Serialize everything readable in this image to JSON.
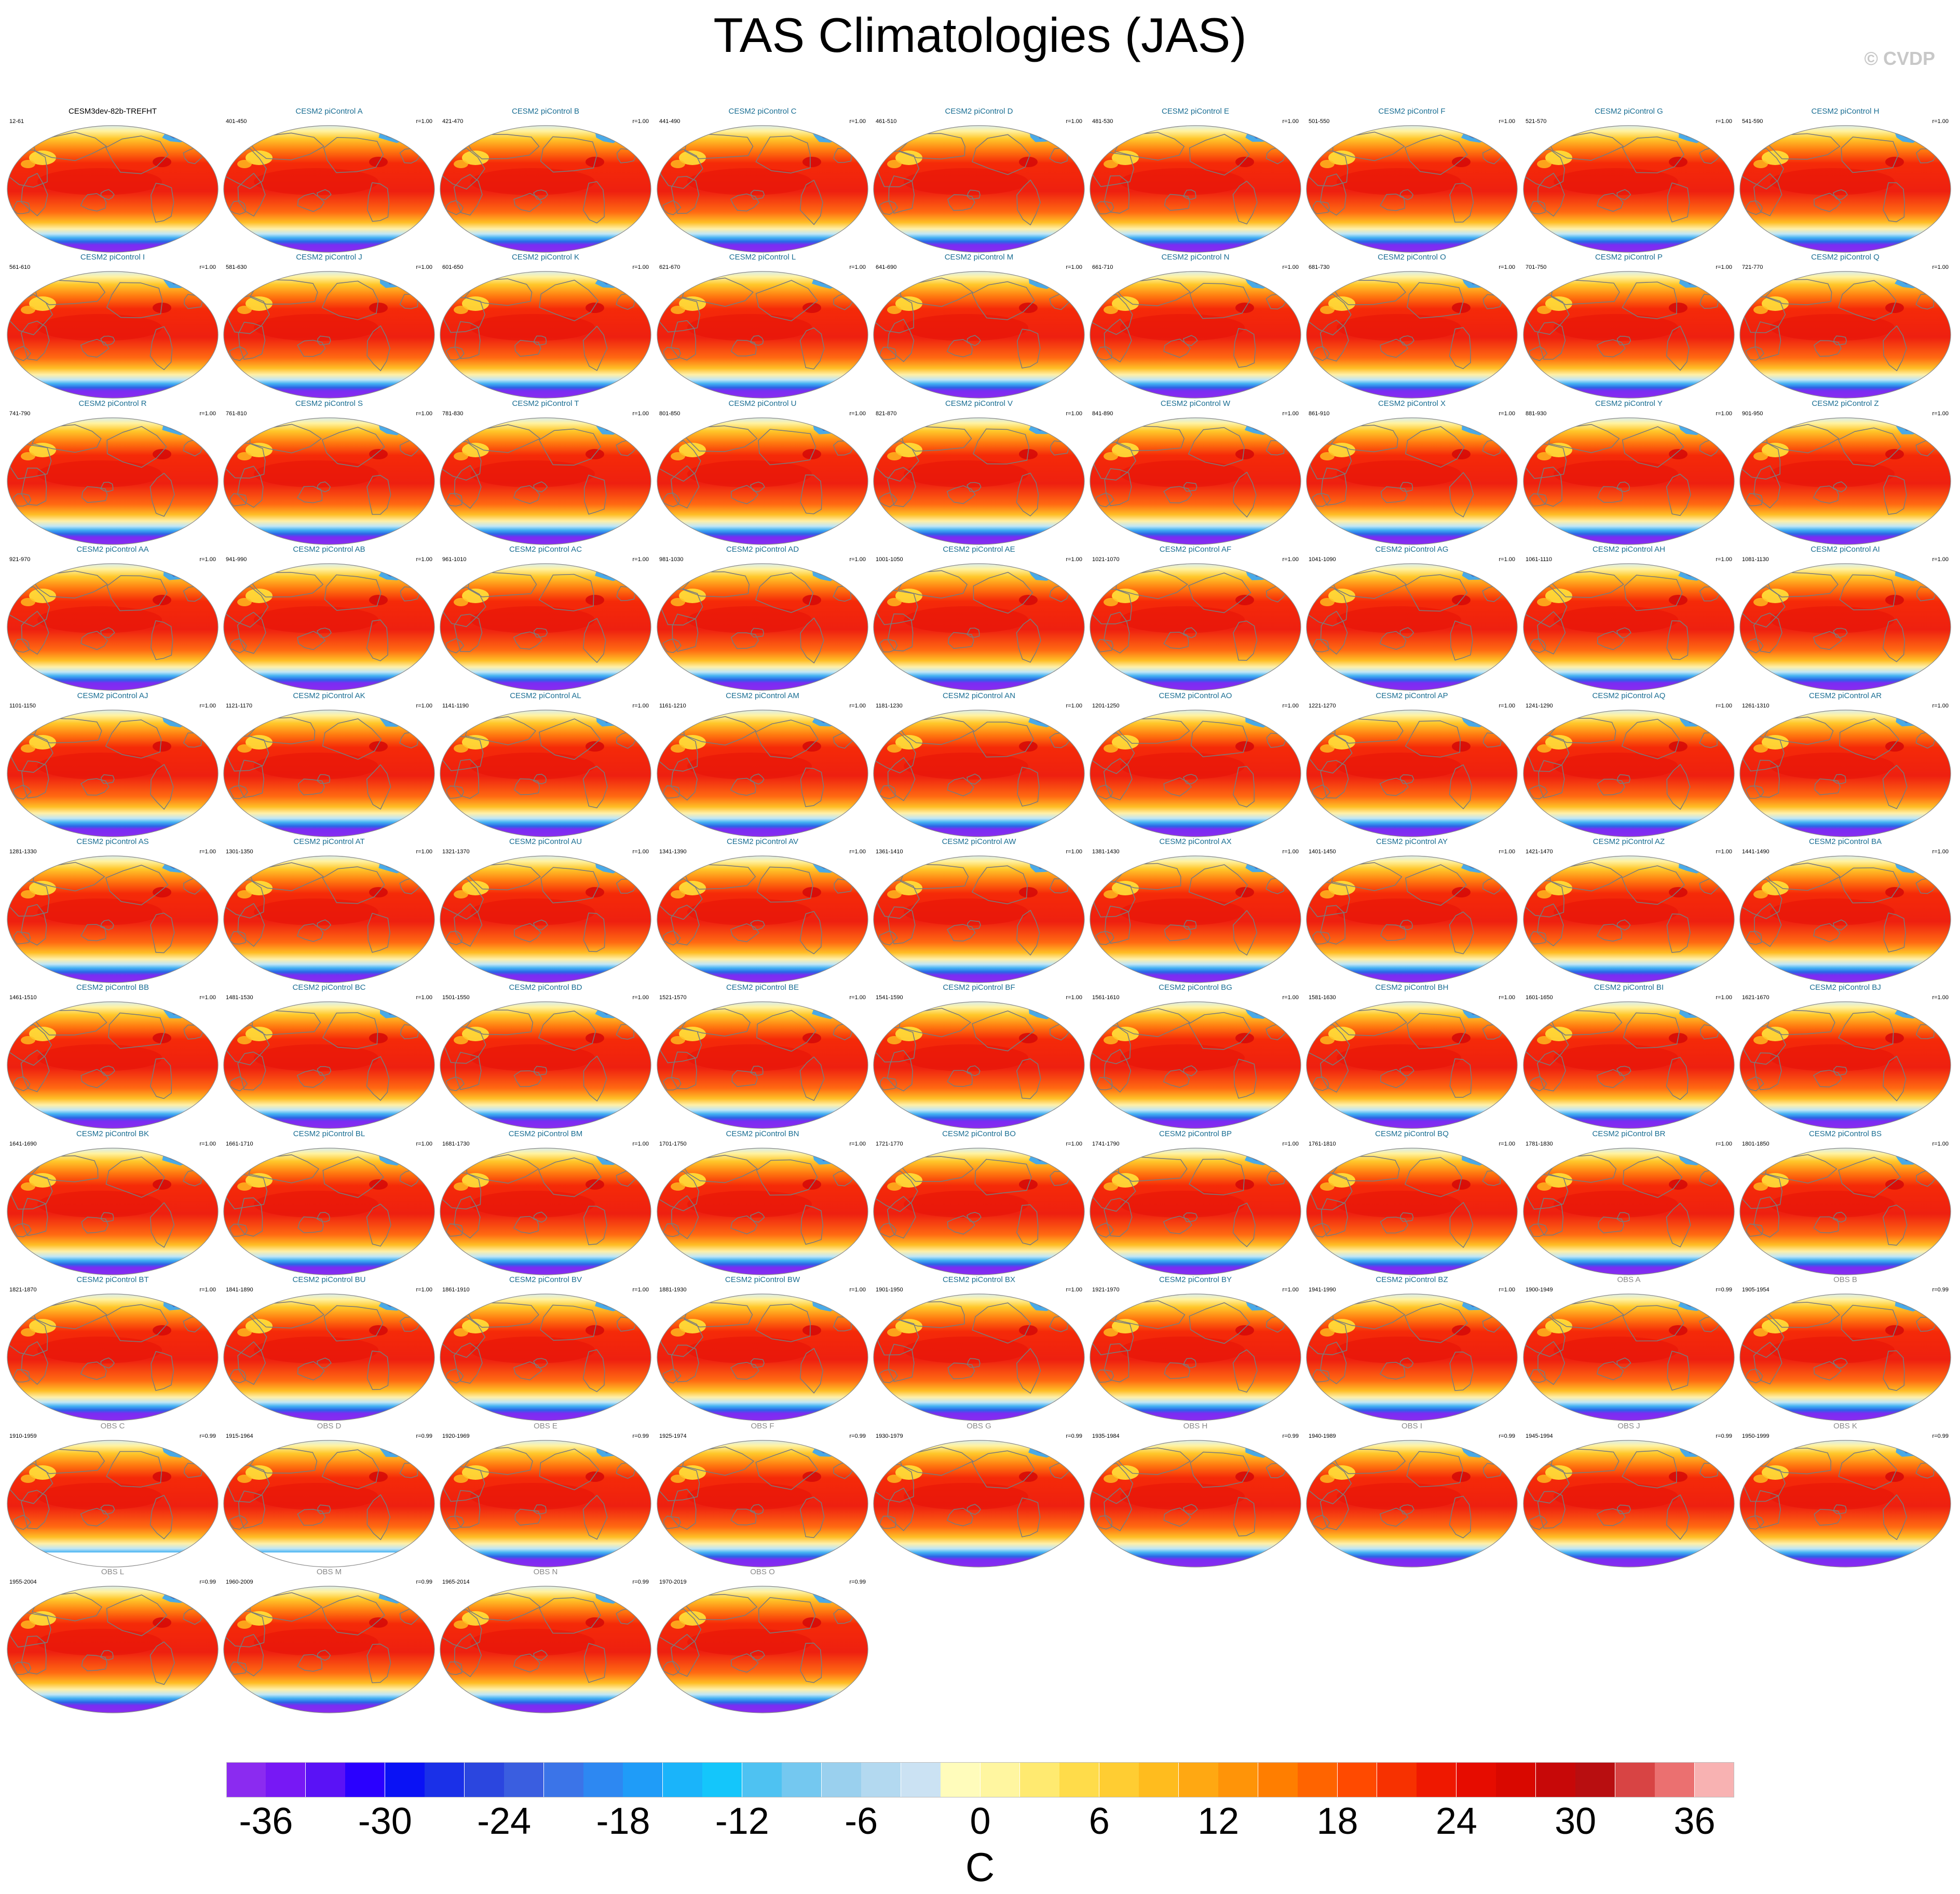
{
  "title": "TAS Climatologies (JAS)",
  "credit": "© CVDP",
  "colorbar": {
    "units": "C",
    "ticks": [
      "-36",
      "-30",
      "-24",
      "-18",
      "-12",
      "-6",
      "0",
      "6",
      "12",
      "18",
      "24",
      "30",
      "36"
    ],
    "colors": [
      "#8b2bf0",
      "#7718f5",
      "#5a12f6",
      "#2a00ff",
      "#0a12f5",
      "#1a30e8",
      "#2b46df",
      "#3a5ee0",
      "#3b74e8",
      "#2d88f2",
      "#1f9cf8",
      "#1ab4fa",
      "#14c6fb",
      "#4ec2f2",
      "#74c8f0",
      "#9ad0ee",
      "#b3d9f0",
      "#cbe2f3",
      "#fffcbb",
      "#fff6a0",
      "#ffea70",
      "#ffdc4a",
      "#ffcd32",
      "#ffbc1e",
      "#ffa812",
      "#ff9408",
      "#ff7e00",
      "#ff6400",
      "#ff4a00",
      "#f73100",
      "#ef1800",
      "#e60c00",
      "#d90800",
      "#c70808",
      "#b80e10",
      "#d84444",
      "#eb7070",
      "#f8b2b2"
    ]
  },
  "panels": [
    {
      "title": "CESM3dev-82b-TREFHT",
      "years": "12-61",
      "r": ""
    },
    {
      "title": "CESM2 piControl A",
      "years": "401-450",
      "r": "r=1.00"
    },
    {
      "title": "CESM2 piControl B",
      "years": "421-470",
      "r": "r=1.00"
    },
    {
      "title": "CESM2 piControl C",
      "years": "441-490",
      "r": "r=1.00"
    },
    {
      "title": "CESM2 piControl D",
      "years": "461-510",
      "r": "r=1.00"
    },
    {
      "title": "CESM2 piControl E",
      "years": "481-530",
      "r": "r=1.00"
    },
    {
      "title": "CESM2 piControl F",
      "years": "501-550",
      "r": "r=1.00"
    },
    {
      "title": "CESM2 piControl G",
      "years": "521-570",
      "r": "r=1.00"
    },
    {
      "title": "CESM2 piControl H",
      "years": "541-590",
      "r": "r=1.00"
    },
    {
      "title": "CESM2 piControl I",
      "years": "561-610",
      "r": "r=1.00"
    },
    {
      "title": "CESM2 piControl J",
      "years": "581-630",
      "r": "r=1.00"
    },
    {
      "title": "CESM2 piControl K",
      "years": "601-650",
      "r": "r=1.00"
    },
    {
      "title": "CESM2 piControl L",
      "years": "621-670",
      "r": "r=1.00"
    },
    {
      "title": "CESM2 piControl M",
      "years": "641-690",
      "r": "r=1.00"
    },
    {
      "title": "CESM2 piControl N",
      "years": "661-710",
      "r": "r=1.00"
    },
    {
      "title": "CESM2 piControl O",
      "years": "681-730",
      "r": "r=1.00"
    },
    {
      "title": "CESM2 piControl P",
      "years": "701-750",
      "r": "r=1.00"
    },
    {
      "title": "CESM2 piControl Q",
      "years": "721-770",
      "r": "r=1.00"
    },
    {
      "title": "CESM2 piControl R",
      "years": "741-790",
      "r": "r=1.00"
    },
    {
      "title": "CESM2 piControl S",
      "years": "761-810",
      "r": "r=1.00"
    },
    {
      "title": "CESM2 piControl T",
      "years": "781-830",
      "r": "r=1.00"
    },
    {
      "title": "CESM2 piControl U",
      "years": "801-850",
      "r": "r=1.00"
    },
    {
      "title": "CESM2 piControl V",
      "years": "821-870",
      "r": "r=1.00"
    },
    {
      "title": "CESM2 piControl W",
      "years": "841-890",
      "r": "r=1.00"
    },
    {
      "title": "CESM2 piControl X",
      "years": "861-910",
      "r": "r=1.00"
    },
    {
      "title": "CESM2 piControl Y",
      "years": "881-930",
      "r": "r=1.00"
    },
    {
      "title": "CESM2 piControl Z",
      "years": "901-950",
      "r": "r=1.00"
    },
    {
      "title": "CESM2 piControl AA",
      "years": "921-970",
      "r": "r=1.00"
    },
    {
      "title": "CESM2 piControl AB",
      "years": "941-990",
      "r": "r=1.00"
    },
    {
      "title": "CESM2 piControl AC",
      "years": "961-1010",
      "r": "r=1.00"
    },
    {
      "title": "CESM2 piControl AD",
      "years": "981-1030",
      "r": "r=1.00"
    },
    {
      "title": "CESM2 piControl AE",
      "years": "1001-1050",
      "r": "r=1.00"
    },
    {
      "title": "CESM2 piControl AF",
      "years": "1021-1070",
      "r": "r=1.00"
    },
    {
      "title": "CESM2 piControl AG",
      "years": "1041-1090",
      "r": "r=1.00"
    },
    {
      "title": "CESM2 piControl AH",
      "years": "1061-1110",
      "r": "r=1.00"
    },
    {
      "title": "CESM2 piControl AI",
      "years": "1081-1130",
      "r": "r=1.00"
    },
    {
      "title": "CESM2 piControl AJ",
      "years": "1101-1150",
      "r": "r=1.00"
    },
    {
      "title": "CESM2 piControl AK",
      "years": "1121-1170",
      "r": "r=1.00"
    },
    {
      "title": "CESM2 piControl AL",
      "years": "1141-1190",
      "r": "r=1.00"
    },
    {
      "title": "CESM2 piControl AM",
      "years": "1161-1210",
      "r": "r=1.00"
    },
    {
      "title": "CESM2 piControl AN",
      "years": "1181-1230",
      "r": "r=1.00"
    },
    {
      "title": "CESM2 piControl AO",
      "years": "1201-1250",
      "r": "r=1.00"
    },
    {
      "title": "CESM2 piControl AP",
      "years": "1221-1270",
      "r": "r=1.00"
    },
    {
      "title": "CESM2 piControl AQ",
      "years": "1241-1290",
      "r": "r=1.00"
    },
    {
      "title": "CESM2 piControl AR",
      "years": "1261-1310",
      "r": "r=1.00"
    },
    {
      "title": "CESM2 piControl AS",
      "years": "1281-1330",
      "r": "r=1.00"
    },
    {
      "title": "CESM2 piControl AT",
      "years": "1301-1350",
      "r": "r=1.00"
    },
    {
      "title": "CESM2 piControl AU",
      "years": "1321-1370",
      "r": "r=1.00"
    },
    {
      "title": "CESM2 piControl AV",
      "years": "1341-1390",
      "r": "r=1.00"
    },
    {
      "title": "CESM2 piControl AW",
      "years": "1361-1410",
      "r": "r=1.00"
    },
    {
      "title": "CESM2 piControl AX",
      "years": "1381-1430",
      "r": "r=1.00"
    },
    {
      "title": "CESM2 piControl AY",
      "years": "1401-1450",
      "r": "r=1.00"
    },
    {
      "title": "CESM2 piControl AZ",
      "years": "1421-1470",
      "r": "r=1.00"
    },
    {
      "title": "CESM2 piControl BA",
      "years": "1441-1490",
      "r": "r=1.00"
    },
    {
      "title": "CESM2 piControl BB",
      "years": "1461-1510",
      "r": "r=1.00"
    },
    {
      "title": "CESM2 piControl BC",
      "years": "1481-1530",
      "r": "r=1.00"
    },
    {
      "title": "CESM2 piControl BD",
      "years": "1501-1550",
      "r": "r=1.00"
    },
    {
      "title": "CESM2 piControl BE",
      "years": "1521-1570",
      "r": "r=1.00"
    },
    {
      "title": "CESM2 piControl BF",
      "years": "1541-1590",
      "r": "r=1.00"
    },
    {
      "title": "CESM2 piControl BG",
      "years": "1561-1610",
      "r": "r=1.00"
    },
    {
      "title": "CESM2 piControl BH",
      "years": "1581-1630",
      "r": "r=1.00"
    },
    {
      "title": "CESM2 piControl BI",
      "years": "1601-1650",
      "r": "r=1.00"
    },
    {
      "title": "CESM2 piControl BJ",
      "years": "1621-1670",
      "r": "r=1.00"
    },
    {
      "title": "CESM2 piControl BK",
      "years": "1641-1690",
      "r": "r=1.00"
    },
    {
      "title": "CESM2 piControl BL",
      "years": "1661-1710",
      "r": "r=1.00"
    },
    {
      "title": "CESM2 piControl BM",
      "years": "1681-1730",
      "r": "r=1.00"
    },
    {
      "title": "CESM2 piControl BN",
      "years": "1701-1750",
      "r": "r=1.00"
    },
    {
      "title": "CESM2 piControl BO",
      "years": "1721-1770",
      "r": "r=1.00"
    },
    {
      "title": "CESM2 piControl BP",
      "years": "1741-1790",
      "r": "r=1.00"
    },
    {
      "title": "CESM2 piControl BQ",
      "years": "1761-1810",
      "r": "r=1.00"
    },
    {
      "title": "CESM2 piControl BR",
      "years": "1781-1830",
      "r": "r=1.00"
    },
    {
      "title": "CESM2 piControl BS",
      "years": "1801-1850",
      "r": "r=1.00"
    },
    {
      "title": "CESM2 piControl BT",
      "years": "1821-1870",
      "r": "r=1.00"
    },
    {
      "title": "CESM2 piControl BU",
      "years": "1841-1890",
      "r": "r=1.00"
    },
    {
      "title": "CESM2 piControl BV",
      "years": "1861-1910",
      "r": "r=1.00"
    },
    {
      "title": "CESM2 piControl BW",
      "years": "1881-1930",
      "r": "r=1.00"
    },
    {
      "title": "CESM2 piControl BX",
      "years": "1901-1950",
      "r": "r=1.00"
    },
    {
      "title": "CESM2 piControl BY",
      "years": "1921-1970",
      "r": "r=1.00"
    },
    {
      "title": "CESM2 piControl BZ",
      "years": "1941-1990",
      "r": "r=1.00"
    },
    {
      "title": "OBS A",
      "years": "1900-1949",
      "r": "r=0.99"
    },
    {
      "title": "OBS B",
      "years": "1905-1954",
      "r": "r=0.99"
    },
    {
      "title": "OBS C",
      "years": "1910-1959",
      "r": "r=0.99"
    },
    {
      "title": "OBS D",
      "years": "1915-1964",
      "r": "r=0.99"
    },
    {
      "title": "OBS E",
      "years": "1920-1969",
      "r": "r=0.99"
    },
    {
      "title": "OBS F",
      "years": "1925-1974",
      "r": "r=0.99"
    },
    {
      "title": "OBS G",
      "years": "1930-1979",
      "r": "r=0.99"
    },
    {
      "title": "OBS H",
      "years": "1935-1984",
      "r": "r=0.99"
    },
    {
      "title": "OBS I",
      "years": "1940-1989",
      "r": "r=0.99"
    },
    {
      "title": "OBS J",
      "years": "1945-1994",
      "r": "r=0.99"
    },
    {
      "title": "OBS K",
      "years": "1950-1999",
      "r": "r=0.99"
    },
    {
      "title": "OBS L",
      "years": "1955-2004",
      "r": "r=0.99"
    },
    {
      "title": "OBS M",
      "years": "1960-2009",
      "r": "r=0.99"
    },
    {
      "title": "OBS N",
      "years": "1965-2014",
      "r": "r=0.99"
    },
    {
      "title": "OBS O",
      "years": "1970-2019",
      "r": "r=0.99"
    }
  ]
}
